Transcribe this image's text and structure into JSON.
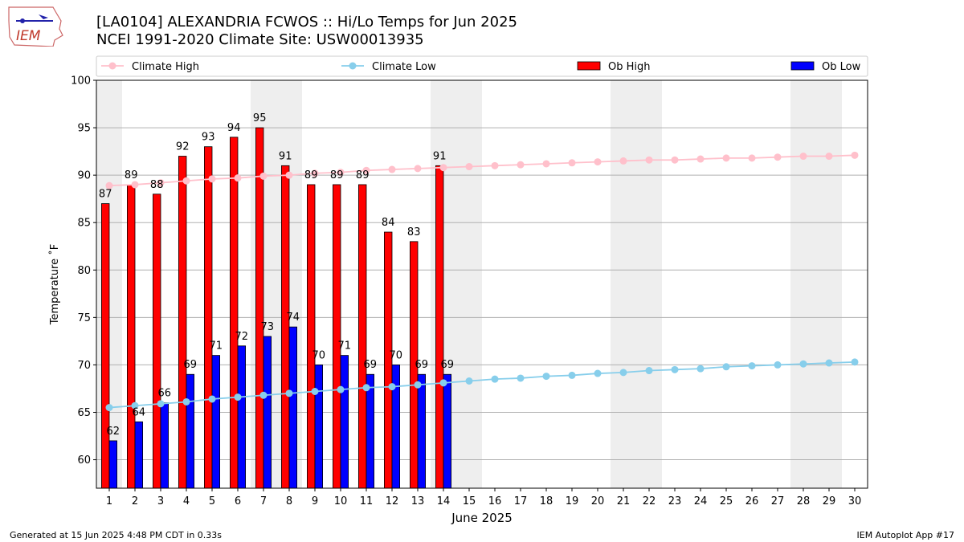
{
  "header": {
    "title_line1": "[LA0104] ALEXANDRIA FCWOS :: Hi/Lo Temps for Jun 2025",
    "title_line2": "NCEI 1991-2020 Climate Site: USW00013935",
    "logo_text": "IEM"
  },
  "footer": {
    "generated": "Generated at 15 Jun 2025 4:48 PM CDT in 0.33s",
    "app": "IEM Autoplot App #17"
  },
  "colors": {
    "ob_high": "#ff0000",
    "ob_low": "#0000ff",
    "climate_high": "#ffc0cb",
    "climate_low": "#87ceeb",
    "weekend_shade": "#eeeeee",
    "grid": "#b0b0b0"
  },
  "chart_data": {
    "type": "bar",
    "xlabel": "June 2025",
    "ylabel": "Temperature ˚F",
    "ylim": [
      57,
      100
    ],
    "xlim": [
      0.5,
      30.5
    ],
    "yticks": [
      60,
      65,
      70,
      75,
      80,
      85,
      90,
      95,
      100
    ],
    "grid": true,
    "legend_position": "top",
    "legend": [
      "Climate High",
      "Climate Low",
      "Ob High",
      "Ob Low"
    ],
    "weekend_days": [
      1,
      7,
      8,
      14,
      15,
      21,
      22,
      28,
      29
    ],
    "days": [
      1,
      2,
      3,
      4,
      5,
      6,
      7,
      8,
      9,
      10,
      11,
      12,
      13,
      14,
      15,
      16,
      17,
      18,
      19,
      20,
      21,
      22,
      23,
      24,
      25,
      26,
      27,
      28,
      29,
      30
    ],
    "ob_high": [
      87,
      89,
      88,
      92,
      93,
      94,
      95,
      91,
      89,
      89,
      89,
      84,
      83,
      91
    ],
    "ob_low": [
      62,
      64,
      66,
      69,
      71,
      72,
      73,
      74,
      70,
      71,
      69,
      70,
      69,
      69
    ],
    "climate_high": [
      88.9,
      89.0,
      89.2,
      89.4,
      89.6,
      89.7,
      89.9,
      90.0,
      90.2,
      90.3,
      90.5,
      90.6,
      90.7,
      90.8,
      90.9,
      91.0,
      91.1,
      91.2,
      91.3,
      91.4,
      91.5,
      91.6,
      91.6,
      91.7,
      91.8,
      91.8,
      91.9,
      92.0,
      92.0,
      92.1
    ],
    "climate_low": [
      65.5,
      65.7,
      65.9,
      66.1,
      66.4,
      66.6,
      66.8,
      67.0,
      67.2,
      67.4,
      67.6,
      67.7,
      67.9,
      68.1,
      68.3,
      68.5,
      68.6,
      68.8,
      68.9,
      69.1,
      69.2,
      69.4,
      69.5,
      69.6,
      69.8,
      69.9,
      70.0,
      70.1,
      70.2,
      70.3
    ]
  }
}
